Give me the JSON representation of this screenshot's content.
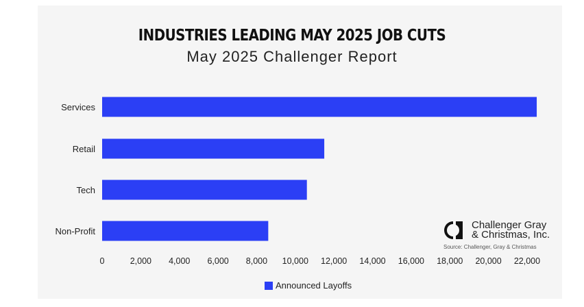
{
  "title": "INDUSTRIES LEADING MAY 2025 JOB CUTS",
  "subtitle": "May 2025 Challenger Report",
  "chart_data": {
    "type": "bar",
    "orientation": "horizontal",
    "title": "INDUSTRIES LEADING MAY 2025 JOB CUTS",
    "subtitle": "May 2025 Challenger Report",
    "categories": [
      "Services",
      "Retail",
      "Tech",
      "Non-Profit"
    ],
    "series": [
      {
        "name": "Announced Layoffs",
        "values": [
          22500,
          11500,
          10600,
          8600
        ]
      }
    ],
    "xlim": [
      0,
      23000
    ],
    "ticks": [
      0,
      2000,
      4000,
      6000,
      8000,
      10000,
      12000,
      14000,
      16000,
      18000,
      20000,
      22000
    ],
    "tick_labels": [
      "0",
      "2,000",
      "4,000",
      "6,000",
      "8,000",
      "10,000",
      "12,000",
      "14,000",
      "16,000",
      "18,000",
      "20,000",
      "22,000"
    ],
    "grid": false,
    "legend_position": "bottom-center",
    "bar_color": "#2b3ff5"
  },
  "legend": {
    "label": "Announced Layoffs"
  },
  "logo": {
    "line1": "Challenger Gray",
    "line2": "& Christmas, Inc."
  },
  "source": "Source: Challenger, Gray & Christmas"
}
